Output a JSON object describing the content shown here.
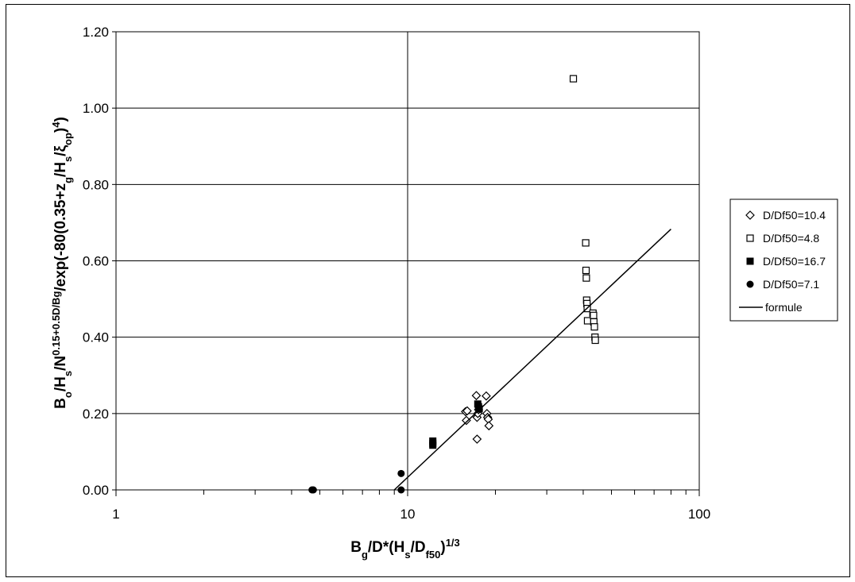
{
  "chart_data": {
    "type": "scatter",
    "x_scale": "log",
    "xlim": [
      1,
      100
    ],
    "ylim": [
      0,
      1.2
    ],
    "grid": "major",
    "legend_position": "right",
    "x_ticks": [
      "1",
      "10",
      "100"
    ],
    "y_ticks": [
      "0.00",
      "0.20",
      "0.40",
      "0.60",
      "0.80",
      "1.00",
      "1.20"
    ],
    "xlabel": {
      "main": "B",
      "sub1": "g",
      "mid": "/D*(H",
      "sub2": "s",
      "mid2": "/D",
      "sub3": "f50",
      "end": ")",
      "sup": "1/3"
    },
    "ylabel": {
      "p1": "B",
      "s1": "o",
      "p2": "/H",
      "s2": "s",
      "p3": "/N",
      "sup1": "0.15+0.5D/Bg",
      "p4": "/exp(-80(0.35+z",
      "s3": "g",
      "p5": "/H",
      "s4": "s",
      "p6": "/ξ",
      "s5": "op",
      "p7": ")",
      "sup2": "4",
      "p8": ")"
    },
    "series": [
      {
        "name": "D/Df50=10.4",
        "marker": "diamond",
        "color": "#000000",
        "points": [
          [
            15.8,
            0.205
          ],
          [
            15.9,
            0.182
          ],
          [
            16.0,
            0.207
          ],
          [
            17.2,
            0.247
          ],
          [
            17.3,
            0.133
          ],
          [
            17.3,
            0.19
          ],
          [
            17.4,
            0.2
          ],
          [
            17.5,
            0.21
          ],
          [
            18.6,
            0.246
          ],
          [
            18.7,
            0.2
          ],
          [
            18.8,
            0.19
          ],
          [
            18.9,
            0.185
          ],
          [
            19.0,
            0.168
          ]
        ]
      },
      {
        "name": "D/Df50=4.8",
        "marker": "square-open",
        "color": "#000000",
        "points": [
          [
            37.0,
            1.077
          ],
          [
            40.8,
            0.647
          ],
          [
            40.9,
            0.575
          ],
          [
            41.0,
            0.555
          ],
          [
            41.1,
            0.497
          ],
          [
            41.2,
            0.488
          ],
          [
            41.3,
            0.475
          ],
          [
            41.4,
            0.443
          ],
          [
            43.2,
            0.463
          ],
          [
            43.4,
            0.457
          ],
          [
            43.5,
            0.44
          ],
          [
            43.7,
            0.427
          ],
          [
            43.9,
            0.4
          ],
          [
            44.0,
            0.392
          ]
        ]
      },
      {
        "name": "D/Df50=16.7",
        "marker": "square-filled",
        "color": "#000000",
        "points": [
          [
            12.2,
            0.128
          ],
          [
            12.2,
            0.122
          ],
          [
            12.2,
            0.117
          ],
          [
            17.4,
            0.225
          ],
          [
            17.5,
            0.218
          ],
          [
            17.6,
            0.212
          ]
        ]
      },
      {
        "name": "D/Df50=7.1",
        "marker": "circle-filled",
        "color": "#000000",
        "points": [
          [
            4.7,
            0.0
          ],
          [
            4.75,
            0.0
          ],
          [
            9.5,
            0.043
          ],
          [
            9.5,
            0.0
          ]
        ]
      },
      {
        "name": "formule",
        "marker": "line",
        "color": "#000000",
        "points": [
          [
            9.0,
            0.0
          ],
          [
            80.0,
            0.683
          ]
        ]
      }
    ]
  }
}
